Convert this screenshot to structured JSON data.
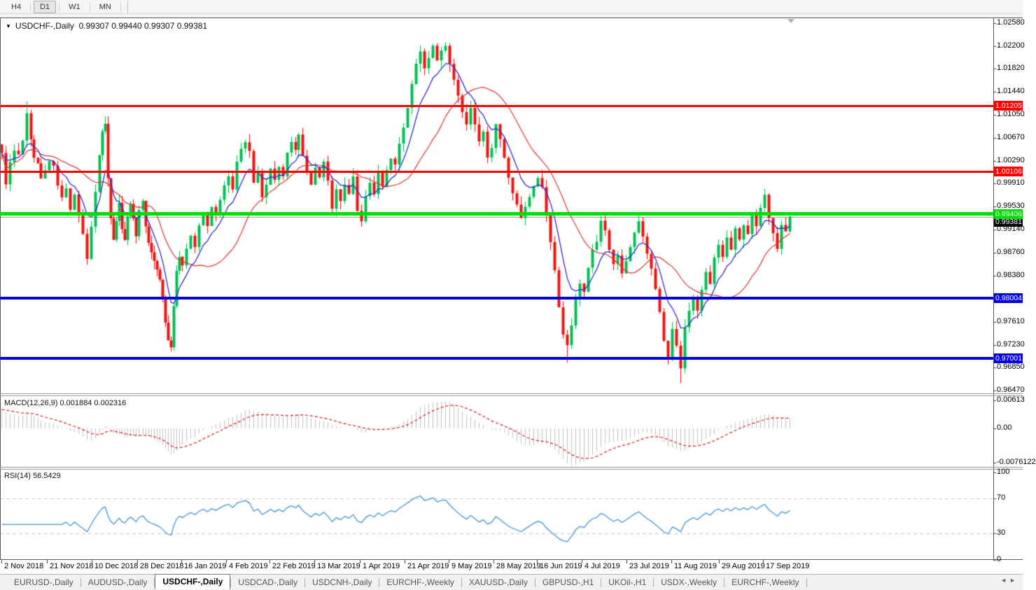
{
  "toolbar": {
    "timeframes": [
      {
        "label": "H4",
        "active": false
      },
      {
        "label": "D1",
        "active": true
      },
      {
        "label": "W1",
        "active": false
      },
      {
        "label": "MN",
        "active": false
      }
    ]
  },
  "chart_header": {
    "dropdown_icon": "dropdown-triangle",
    "symbol": "USDCHF-,Daily",
    "ohlc_text": "0.99307 0.99440 0.99307 0.99381"
  },
  "indicator_labels": {
    "macd": "MACD(12,26,9) 0.001884 0.002316",
    "rsi": "RSI(14) 56.5429"
  },
  "price_axis_ticks": [
    "1.02580",
    "1.02200",
    "1.01820",
    "1.01440",
    "1.01050",
    "1.00670",
    "1.00290",
    "0.99910",
    "0.99530",
    "0.99140",
    "0.98760",
    "0.98380",
    "0.97610",
    "0.97230",
    "0.96850",
    "0.96470"
  ],
  "levels": [
    {
      "label": "1.01205",
      "value": 1.01205,
      "color": "#ff0000",
      "thickness": 3,
      "name": "resistance-line-1"
    },
    {
      "label": "1.00106",
      "value": 1.00106,
      "color": "#ff0000",
      "thickness": 3,
      "name": "resistance-line-2"
    },
    {
      "label": "0.99406",
      "value": 0.99406,
      "color": "#00dd00",
      "thickness": 5,
      "name": "pivot-line-green"
    },
    {
      "label": "0.98004",
      "value": 0.98004,
      "color": "#0000e0",
      "thickness": 4,
      "name": "support-line-1"
    },
    {
      "label": "0.97001",
      "value": 0.97001,
      "color": "#0000e0",
      "thickness": 4,
      "name": "support-line-2"
    }
  ],
  "current_price": {
    "label": "0.99381",
    "value": 0.99381
  },
  "macd_axis": [
    {
      "label": "0.00613",
      "value": 0.00613
    },
    {
      "label": "0.00",
      "value": 0
    },
    {
      "label": "-0.0076122",
      "value": -0.0076122
    }
  ],
  "rsi_axis": [
    {
      "label": "100",
      "value": 100
    },
    {
      "label": "70",
      "value": 70
    },
    {
      "label": "30",
      "value": 30
    },
    {
      "label": "0",
      "value": 0
    }
  ],
  "date_axis": [
    {
      "label": "2 Nov 2018",
      "x": 2
    },
    {
      "label": "21 Nov 2018",
      "x": 67
    },
    {
      "label": "10 Dec 2018",
      "x": 131
    },
    {
      "label": "28 Dec 2018",
      "x": 196
    },
    {
      "label": "16 Jan 2019",
      "x": 259
    },
    {
      "label": "4 Feb 2019",
      "x": 323
    },
    {
      "label": "22 Feb 2019",
      "x": 385
    },
    {
      "label": "13 Mar 2019",
      "x": 449
    },
    {
      "label": "1 Apr 2019",
      "x": 514
    },
    {
      "label": "21 Apr 2019",
      "x": 578
    },
    {
      "label": "9 May 2019",
      "x": 641
    },
    {
      "label": "28 May 2019",
      "x": 705
    },
    {
      "label": "16 Jun 2019",
      "x": 767
    },
    {
      "label": "4 Jul 2019",
      "x": 831
    },
    {
      "label": "23 Jul 2019",
      "x": 895
    },
    {
      "label": "11 Aug 2019",
      "x": 959
    },
    {
      "label": "29 Aug 2019",
      "x": 1027
    },
    {
      "label": "17 Sep 2019",
      "x": 1090
    }
  ],
  "tabs": {
    "items": [
      {
        "label": "EURUSD-,Daily",
        "active": false
      },
      {
        "label": "AUDUSD-,Daily",
        "active": false
      },
      {
        "label": "USDCHF-,Daily",
        "active": true
      },
      {
        "label": "USDCAD-,Daily",
        "active": false
      },
      {
        "label": "USDCNH-,Daily",
        "active": false
      },
      {
        "label": "EURCHF-,Weekly",
        "active": false
      },
      {
        "label": "XAUUSD-,Daily",
        "active": false
      },
      {
        "label": "GBPUSD-,H1",
        "active": false
      },
      {
        "label": "UKOil-,H1",
        "active": false
      },
      {
        "label": "USDX-,Weekly",
        "active": false
      },
      {
        "label": "EURCHF-,Weekly",
        "active": false
      }
    ],
    "nav_left": "◄",
    "nav_right": "►"
  },
  "chart_data": {
    "type": "candlestick",
    "symbol": "USDCHF-",
    "timeframe": "Daily",
    "title": "USDCHF-,Daily",
    "visible_ohlc": {
      "open": 0.99307,
      "high": 0.9944,
      "low": 0.99307,
      "close": 0.99381
    },
    "x_range": [
      "2 Nov 2018",
      "17 Sep 2019"
    ],
    "y_axis_range": [
      0.9647,
      1.0258
    ],
    "grid": false,
    "colors": {
      "bull": "#00c053",
      "bear": "#f01410",
      "ma_fast": "#2b2bd4",
      "ma_slow": "#e03232",
      "macd_hist": "#c0c0c0",
      "macd_signal": "#e01414",
      "rsi_line": "#4593da",
      "rsi_levels": "#c9c9c9",
      "bid_line": "#9a9a9a",
      "level_red": "#ff0000",
      "level_green": "#00dd00",
      "level_blue": "#0000e0"
    },
    "indicators": {
      "ma_fast_period": 8,
      "ma_slow_period": 20,
      "macd": {
        "fast": 12,
        "slow": 26,
        "signal": 9,
        "shown_values": [
          0.001884,
          0.002316
        ],
        "axis_max": 0.00613,
        "axis_min": -0.0076122
      },
      "rsi": {
        "period": 14,
        "shown_value": 56.5429,
        "levels": [
          70,
          30
        ]
      }
    },
    "horizontal_levels": [
      1.01205,
      1.00106,
      0.99406,
      0.98004,
      0.97001
    ],
    "price_path_anchors": [
      [
        2,
        1.004
      ],
      [
        8,
        0.9992
      ],
      [
        14,
        1.0025
      ],
      [
        20,
        1.0045
      ],
      [
        26,
        1.0038
      ],
      [
        32,
        1.0062
      ],
      [
        38,
        1.0105
      ],
      [
        44,
        1.0062
      ],
      [
        48,
        1.0032
      ],
      [
        54,
        1.0022
      ],
      [
        58,
        0.9998
      ],
      [
        64,
        1.0012
      ],
      [
        70,
        1.003
      ],
      [
        76,
        1.0018
      ],
      [
        82,
        0.999
      ],
      [
        88,
        0.9966
      ],
      [
        94,
        0.9985
      ],
      [
        100,
        0.995
      ],
      [
        106,
        0.997
      ],
      [
        112,
        0.994
      ],
      [
        118,
        0.9906
      ],
      [
        124,
        0.9868
      ],
      [
        130,
        0.992
      ],
      [
        136,
        0.9975
      ],
      [
        142,
        1.004
      ],
      [
        146,
        1.0078
      ],
      [
        150,
        1.009
      ],
      [
        154,
        1.0
      ],
      [
        158,
        0.9936
      ],
      [
        162,
        0.99
      ],
      [
        166,
        0.993
      ],
      [
        170,
        0.9958
      ],
      [
        174,
        0.9918
      ],
      [
        178,
        0.9898
      ],
      [
        182,
        0.9935
      ],
      [
        186,
        0.996
      ],
      [
        190,
        0.993
      ],
      [
        194,
        0.9906
      ],
      [
        198,
        0.9948
      ],
      [
        204,
        0.996
      ],
      [
        208,
        0.9922
      ],
      [
        212,
        0.9892
      ],
      [
        216,
        0.9878
      ],
      [
        220,
        0.9862
      ],
      [
        224,
        0.9848
      ],
      [
        228,
        0.983
      ],
      [
        232,
        0.98
      ],
      [
        236,
        0.976
      ],
      [
        240,
        0.9732
      ],
      [
        244,
        0.9718
      ],
      [
        248,
        0.979
      ],
      [
        252,
        0.9846
      ],
      [
        256,
        0.9872
      ],
      [
        260,
        0.9856
      ],
      [
        266,
        0.988
      ],
      [
        272,
        0.9906
      ],
      [
        278,
        0.9888
      ],
      [
        284,
        0.9922
      ],
      [
        290,
        0.994
      ],
      [
        296,
        0.9918
      ],
      [
        302,
        0.9952
      ],
      [
        308,
        0.9938
      ],
      [
        314,
        0.9966
      ],
      [
        320,
        0.9986
      ],
      [
        326,
        1.0002
      ],
      [
        332,
        0.998
      ],
      [
        338,
        1.0025
      ],
      [
        344,
        1.0048
      ],
      [
        350,
        1.0062
      ],
      [
        356,
        1.0045
      ],
      [
        362,
        0.999
      ],
      [
        368,
        1.0008
      ],
      [
        374,
        0.9966
      ],
      [
        380,
        0.9992
      ],
      [
        386,
        1.0018
      ],
      [
        392,
        0.9996
      ],
      [
        398,
        1.002
      ],
      [
        404,
        1.0002
      ],
      [
        410,
        1.004
      ],
      [
        416,
        1.0058
      ],
      [
        422,
        1.0048
      ],
      [
        426,
        1.007
      ],
      [
        432,
        1.0035
      ],
      [
        438,
        1.0008
      ],
      [
        444,
        0.9992
      ],
      [
        450,
        1.002
      ],
      [
        456,
        1.0
      ],
      [
        462,
        1.0025
      ],
      [
        468,
        0.9995
      ],
      [
        474,
        0.9952
      ],
      [
        480,
        0.998
      ],
      [
        486,
        0.9962
      ],
      [
        492,
        0.999
      ],
      [
        498,
        0.9972
      ],
      [
        504,
        1.0
      ],
      [
        510,
        0.9945
      ],
      [
        516,
        0.993
      ],
      [
        522,
        0.9968
      ],
      [
        528,
        0.9992
      ],
      [
        534,
        0.9975
      ],
      [
        540,
        1.0008
      ],
      [
        546,
        0.9988
      ],
      [
        552,
        1.0012
      ],
      [
        558,
        1.0035
      ],
      [
        564,
        1.0022
      ],
      [
        570,
        1.0058
      ],
      [
        576,
        1.0085
      ],
      [
        582,
        1.0118
      ],
      [
        588,
        1.0155
      ],
      [
        594,
        1.019
      ],
      [
        600,
        1.0212
      ],
      [
        606,
        1.0185
      ],
      [
        612,
        1.0202
      ],
      [
        618,
        1.0218
      ],
      [
        624,
        1.0198
      ],
      [
        630,
        1.0212
      ],
      [
        636,
        1.022
      ],
      [
        642,
        1.019
      ],
      [
        648,
        1.0165
      ],
      [
        654,
        1.0138
      ],
      [
        660,
        1.0108
      ],
      [
        666,
        1.0092
      ],
      [
        672,
        1.0115
      ],
      [
        678,
        1.0092
      ],
      [
        684,
        1.0062
      ],
      [
        690,
        1.0078
      ],
      [
        696,
        1.0035
      ],
      [
        702,
        1.0048
      ],
      [
        708,
        1.0088
      ],
      [
        714,
        1.0065
      ],
      [
        720,
        1.0032
      ],
      [
        726,
        0.9998
      ],
      [
        732,
        0.9975
      ],
      [
        738,
        0.9958
      ],
      [
        744,
        0.9932
      ],
      [
        750,
        0.995
      ],
      [
        756,
        0.997
      ],
      [
        762,
        0.9988
      ],
      [
        768,
        1.0002
      ],
      [
        774,
        0.9988
      ],
      [
        780,
        0.9938
      ],
      [
        786,
        0.9892
      ],
      [
        792,
        0.9848
      ],
      [
        798,
        0.9785
      ],
      [
        804,
        0.9742
      ],
      [
        810,
        0.972
      ],
      [
        816,
        0.9758
      ],
      [
        822,
        0.98
      ],
      [
        828,
        0.9825
      ],
      [
        834,
        0.9812
      ],
      [
        840,
        0.9852
      ],
      [
        846,
        0.9882
      ],
      [
        852,
        0.9895
      ],
      [
        858,
        0.9932
      ],
      [
        864,
        0.9912
      ],
      [
        870,
        0.9882
      ],
      [
        876,
        0.9858
      ],
      [
        882,
        0.987
      ],
      [
        888,
        0.9842
      ],
      [
        894,
        0.9865
      ],
      [
        900,
        0.9888
      ],
      [
        906,
        0.9908
      ],
      [
        912,
        0.993
      ],
      [
        918,
        0.9902
      ],
      [
        924,
        0.9875
      ],
      [
        930,
        0.9852
      ],
      [
        936,
        0.9818
      ],
      [
        942,
        0.978
      ],
      [
        948,
        0.9728
      ],
      [
        954,
        0.9702
      ],
      [
        960,
        0.9748
      ],
      [
        966,
        0.9722
      ],
      [
        972,
        0.9685
      ],
      [
        978,
        0.9752
      ],
      [
        984,
        0.9778
      ],
      [
        990,
        0.9802
      ],
      [
        996,
        0.9782
      ],
      [
        1002,
        0.9812
      ],
      [
        1008,
        0.9845
      ],
      [
        1014,
        0.9822
      ],
      [
        1020,
        0.9868
      ],
      [
        1026,
        0.9892
      ],
      [
        1032,
        0.9872
      ],
      [
        1038,
        0.99
      ],
      [
        1044,
        0.9882
      ],
      [
        1050,
        0.9915
      ],
      [
        1056,
        0.9898
      ],
      [
        1062,
        0.9922
      ],
      [
        1068,
        0.9908
      ],
      [
        1074,
        0.9938
      ],
      [
        1080,
        0.992
      ],
      [
        1086,
        0.995
      ],
      [
        1092,
        0.9972
      ],
      [
        1098,
        0.9932
      ],
      [
        1104,
        0.9906
      ],
      [
        1110,
        0.988
      ],
      [
        1116,
        0.9922
      ],
      [
        1122,
        0.9912
      ],
      [
        1128,
        0.9938
      ]
    ],
    "wick_events": [
      [
        38,
        "h",
        1.0128
      ],
      [
        244,
        "l",
        0.9712
      ],
      [
        636,
        "h",
        1.0226
      ],
      [
        810,
        "l",
        0.9693
      ],
      [
        954,
        "l",
        0.969
      ],
      [
        972,
        "l",
        0.9659
      ],
      [
        1092,
        "h",
        0.9982
      ]
    ]
  }
}
